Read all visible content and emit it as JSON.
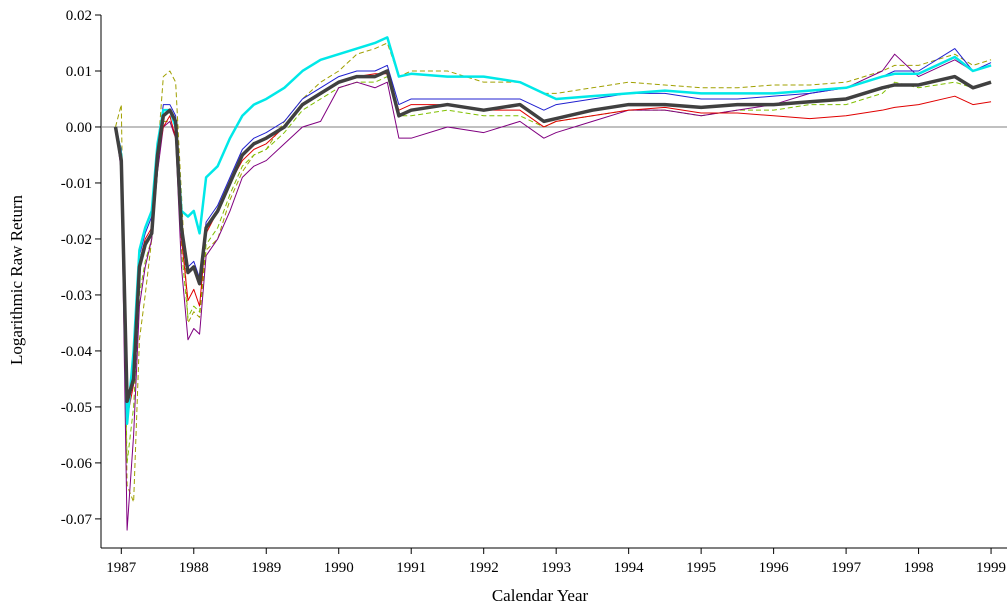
{
  "chart_data": {
    "type": "line",
    "x_label": "Calendar Year",
    "y_label": "Logarithmic Raw Return",
    "xlim": [
      1986.72,
      1999.22
    ],
    "ylim": [
      -0.0752,
      0.02
    ],
    "xticks": [
      1987,
      1988,
      1989,
      1990,
      1991,
      1992,
      1993,
      1994,
      1995,
      1996,
      1997,
      1998,
      1999
    ],
    "yticks": [
      0.02,
      0.01,
      {
        "value": 0,
        "label": "0.00"
      },
      -0.01,
      -0.02,
      -0.03,
      -0.04,
      -0.05,
      -0.06,
      -0.07
    ],
    "hline": 0,
    "x": [
      1986.92,
      1987.0,
      1987.08,
      1987.17,
      1987.25,
      1987.33,
      1987.42,
      1987.5,
      1987.58,
      1987.67,
      1987.75,
      1987.83,
      1987.92,
      1988.0,
      1988.08,
      1988.17,
      1988.33,
      1988.5,
      1988.67,
      1988.83,
      1989.0,
      1989.25,
      1989.5,
      1989.75,
      1990.0,
      1990.25,
      1990.5,
      1990.67,
      1990.83,
      1991.0,
      1991.5,
      1992.0,
      1992.5,
      1992.83,
      1993.0,
      1993.5,
      1994.0,
      1994.5,
      1995.0,
      1995.5,
      1996.0,
      1996.5,
      1997.0,
      1997.5,
      1997.67,
      1998.0,
      1998.5,
      1998.75,
      1999.0
    ],
    "series": [
      {
        "color": "#a0a000",
        "dashed": true,
        "line_width": 1,
        "values": [
          0,
          0.004,
          -0.064,
          -0.067,
          -0.038,
          -0.03,
          -0.02,
          -0.005,
          0.009,
          0.01,
          0.008,
          -0.012,
          -0.035,
          -0.033,
          -0.034,
          -0.022,
          -0.02,
          -0.013,
          -0.008,
          -0.005,
          -0.004,
          0.001,
          0.005,
          0.008,
          0.01,
          0.013,
          0.014,
          0.015,
          0.009,
          0.01,
          0.01,
          0.008,
          0.008,
          0.006,
          0.006,
          0.007,
          0.008,
          0.0075,
          0.007,
          0.007,
          0.0075,
          0.0075,
          0.008,
          0.01,
          0.011,
          0.011,
          0.013,
          0.011,
          0.012
        ]
      },
      {
        "color": "#80c000",
        "dashed": true,
        "line_width": 1,
        "values": [
          0,
          -0.006,
          -0.06,
          -0.05,
          -0.03,
          -0.024,
          -0.02,
          -0.008,
          0.001,
          0.001,
          -0.002,
          -0.022,
          -0.034,
          -0.032,
          -0.033,
          -0.021,
          -0.018,
          -0.012,
          -0.007,
          -0.005,
          -0.004,
          -0.001,
          0.003,
          0.005,
          0.007,
          0.008,
          0.008,
          0.009,
          0.002,
          0.002,
          0.003,
          0.002,
          0.002,
          0.0,
          0.001,
          0.002,
          0.003,
          0.003,
          0.002,
          0.003,
          0.003,
          0.004,
          0.004,
          0.006,
          0.008,
          0.007,
          0.008,
          0.007,
          0.008
        ]
      },
      {
        "color": "#800080",
        "dashed": false,
        "line_width": 1,
        "values": [
          0,
          -0.008,
          -0.072,
          -0.055,
          -0.032,
          -0.025,
          -0.02,
          -0.008,
          0.0,
          0.001,
          -0.002,
          -0.025,
          -0.038,
          -0.036,
          -0.037,
          -0.023,
          -0.02,
          -0.015,
          -0.009,
          -0.007,
          -0.006,
          -0.003,
          0.0,
          0.001,
          0.007,
          0.008,
          0.007,
          0.008,
          -0.002,
          -0.002,
          0.0,
          -0.001,
          0.001,
          -0.002,
          -0.001,
          0.001,
          0.003,
          0.003,
          0.002,
          0.003,
          0.004,
          0.006,
          0.007,
          0.01,
          0.013,
          0.009,
          0.012,
          0.01,
          0.011
        ]
      },
      {
        "color": "#e00000",
        "dashed": false,
        "line_width": 1,
        "values": [
          0,
          -0.005,
          -0.052,
          -0.046,
          -0.024,
          -0.02,
          -0.018,
          -0.006,
          0.0,
          0.002,
          -0.002,
          -0.02,
          -0.031,
          -0.029,
          -0.032,
          -0.019,
          -0.015,
          -0.01,
          -0.006,
          -0.004,
          -0.003,
          0.0,
          0.004,
          0.006,
          0.008,
          0.009,
          0.0095,
          0.0095,
          0.003,
          0.004,
          0.004,
          0.003,
          0.003,
          0.0,
          0.001,
          0.002,
          0.003,
          0.0035,
          0.0025,
          0.0025,
          0.002,
          0.0015,
          0.002,
          0.003,
          0.0035,
          0.004,
          0.0055,
          0.004,
          0.0045
        ]
      },
      {
        "color": "#2020d0",
        "dashed": false,
        "line_width": 1,
        "values": [
          0,
          -0.004,
          -0.05,
          -0.044,
          -0.023,
          -0.019,
          -0.016,
          -0.004,
          0.004,
          0.004,
          0.002,
          -0.017,
          -0.025,
          -0.024,
          -0.027,
          -0.017,
          -0.014,
          -0.009,
          -0.004,
          -0.002,
          -0.001,
          0.001,
          0.005,
          0.007,
          0.009,
          0.01,
          0.01,
          0.011,
          0.004,
          0.005,
          0.005,
          0.005,
          0.005,
          0.003,
          0.004,
          0.005,
          0.006,
          0.006,
          0.005,
          0.005,
          0.0055,
          0.006,
          0.007,
          0.009,
          0.01,
          0.01,
          0.014,
          0.01,
          0.0115
        ]
      },
      {
        "color": "#00e8e8",
        "dashed": false,
        "line_width": 2.5,
        "values": [
          0,
          -0.005,
          -0.053,
          -0.04,
          -0.022,
          -0.018,
          -0.015,
          -0.003,
          0.003,
          0.003,
          0.0,
          -0.015,
          -0.016,
          -0.015,
          -0.019,
          -0.009,
          -0.007,
          -0.002,
          0.002,
          0.004,
          0.005,
          0.007,
          0.01,
          0.012,
          0.013,
          0.014,
          0.015,
          0.016,
          0.009,
          0.0095,
          0.009,
          0.009,
          0.008,
          0.006,
          0.005,
          0.0055,
          0.006,
          0.0065,
          0.006,
          0.006,
          0.006,
          0.0065,
          0.007,
          0.009,
          0.0095,
          0.0095,
          0.0125,
          0.01,
          0.011
        ]
      },
      {
        "color": "#404040",
        "dashed": false,
        "line_width": 3.5,
        "values": [
          0,
          -0.006,
          -0.049,
          -0.045,
          -0.025,
          -0.021,
          -0.019,
          -0.005,
          0.002,
          0.003,
          0.001,
          -0.018,
          -0.026,
          -0.025,
          -0.028,
          -0.018,
          -0.015,
          -0.01,
          -0.005,
          -0.003,
          -0.002,
          0.0,
          0.004,
          0.006,
          0.008,
          0.009,
          0.009,
          0.01,
          0.002,
          0.003,
          0.004,
          0.003,
          0.004,
          0.001,
          0.0015,
          0.003,
          0.004,
          0.004,
          0.0035,
          0.004,
          0.004,
          0.0045,
          0.005,
          0.007,
          0.0075,
          0.0075,
          0.009,
          0.007,
          0.008
        ]
      }
    ]
  }
}
